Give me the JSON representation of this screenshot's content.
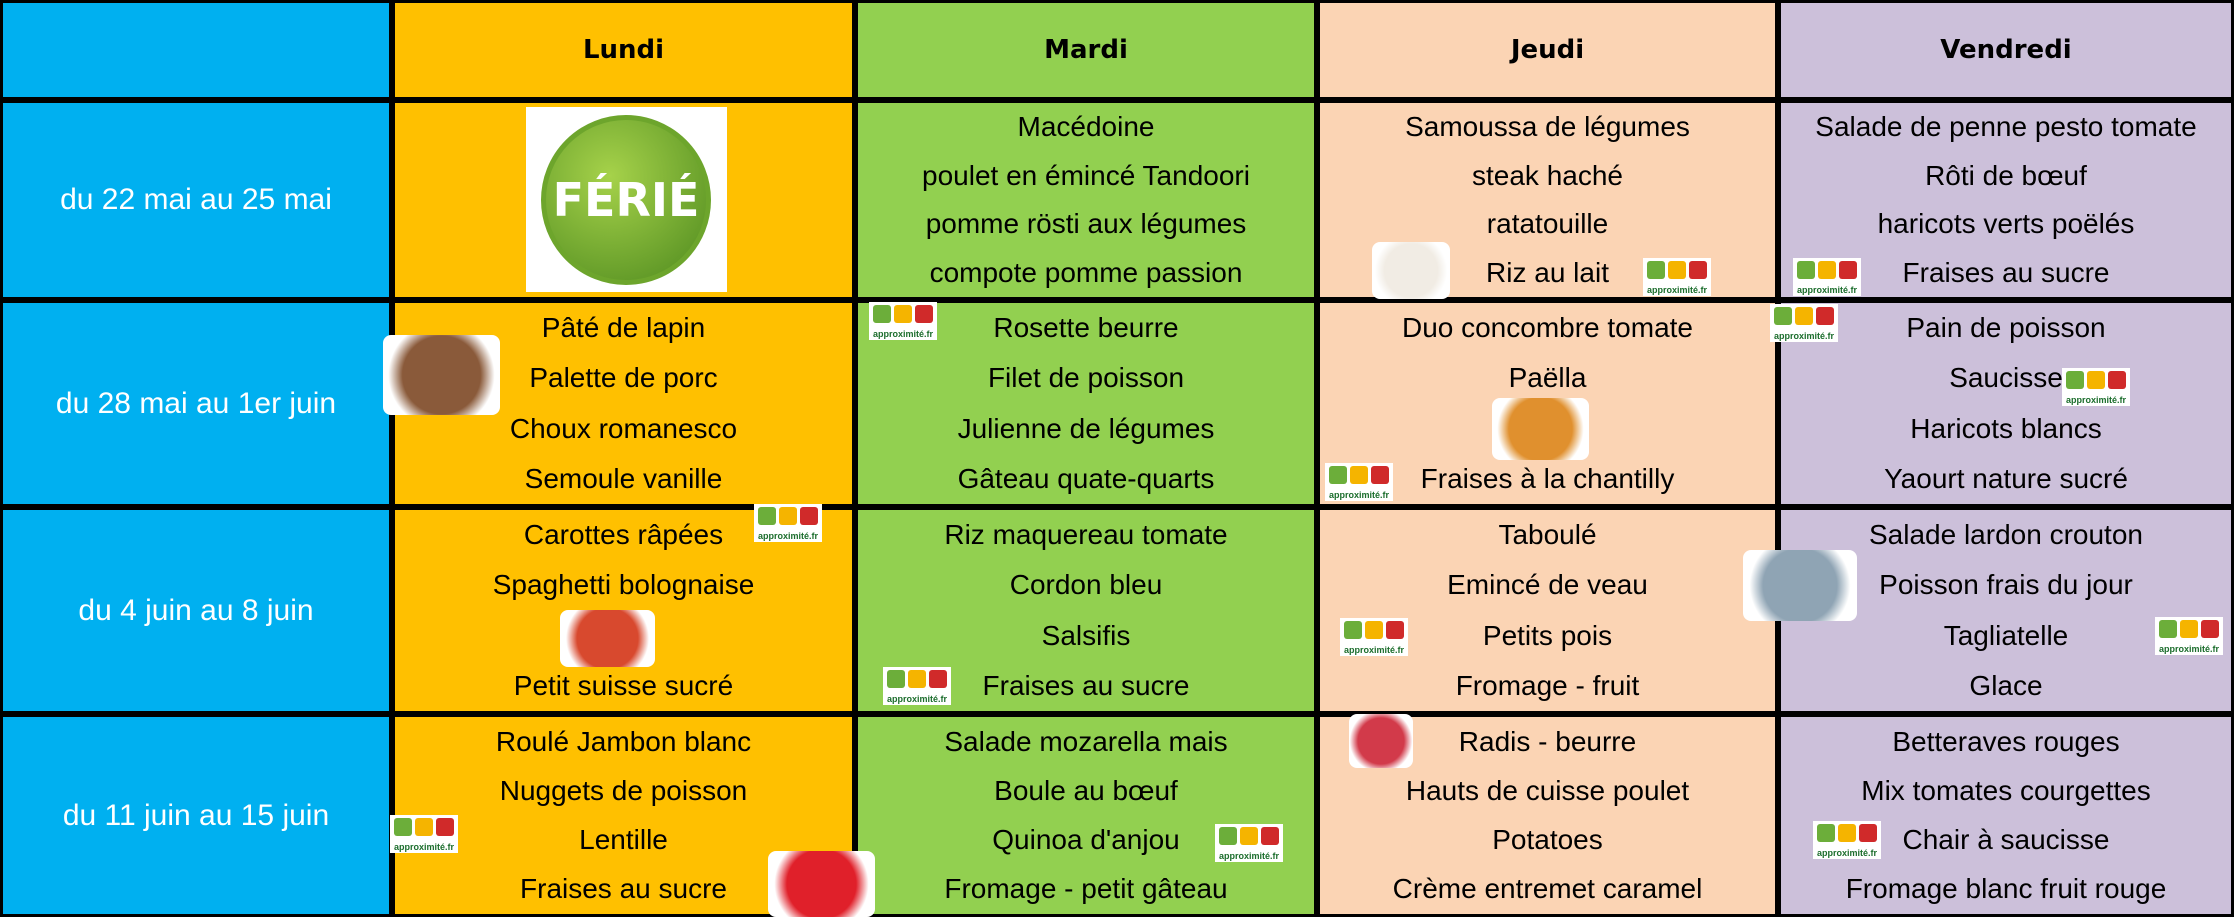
{
  "header": {
    "columns": [
      "Lundi",
      "Mardi",
      "Jeudi",
      "Vendredi"
    ]
  },
  "logo_text": "approximité.fr",
  "rows": [
    {
      "period": "du 22 mai au 25 mai",
      "cells": [
        {
          "badge": "FÉRIÉ"
        },
        [
          "Macédoine",
          "poulet en émincé Tandoori",
          "pomme rösti aux légumes",
          "compote pomme passion"
        ],
        [
          "Samoussa de légumes",
          "steak haché",
          "ratatouille",
          "Riz au lait"
        ],
        [
          "Salade de penne pesto tomate",
          "Rôti de bœuf",
          "haricots verts poëlés",
          "Fraises au sucre"
        ]
      ]
    },
    {
      "period": "du 28 mai au 1er juin",
      "cells": [
        [
          "Pâté de lapin",
          "Palette de porc",
          "Choux romanesco",
          "Semoule vanille"
        ],
        [
          "Rosette beurre",
          "Filet de poisson",
          "Julienne de légumes",
          "Gâteau quate-quarts"
        ],
        [
          "Duo concombre tomate",
          "Paëlla",
          null,
          "Fraises à la chantilly"
        ],
        [
          "Pain de poisson",
          "Saucisse",
          "Haricots blancs",
          "Yaourt nature sucré"
        ]
      ]
    },
    {
      "period": "du 4 juin au 8 juin",
      "cells": [
        [
          "Carottes râpées",
          "Spaghetti bolognaise",
          null,
          "Petit suisse sucré"
        ],
        [
          "Riz maquereau tomate",
          "Cordon bleu",
          "Salsifis",
          "Fraises au sucre"
        ],
        [
          "Taboulé",
          "Emincé de veau",
          "Petits pois",
          "Fromage - fruit"
        ],
        [
          "Salade lardon crouton",
          "Poisson frais du jour",
          "Tagliatelle",
          "Glace"
        ]
      ]
    },
    {
      "period": "du 11 juin au 15 juin",
      "cells": [
        [
          "Roulé Jambon blanc",
          "Nuggets de poisson",
          "Lentille",
          "Fraises au sucre"
        ],
        [
          "Salade mozarella mais",
          "Boule au bœuf",
          "Quinoa d'anjou",
          "Fromage - petit gâteau"
        ],
        [
          "Radis - beurre",
          "Hauts de cuisse poulet",
          "Potatoes",
          "Crème entremet caramel"
        ],
        [
          "Betteraves rouges",
          "Mix tomates courgettes",
          "Chair à saucisse",
          "Fromage blanc fruit rouge"
        ]
      ]
    }
  ]
}
